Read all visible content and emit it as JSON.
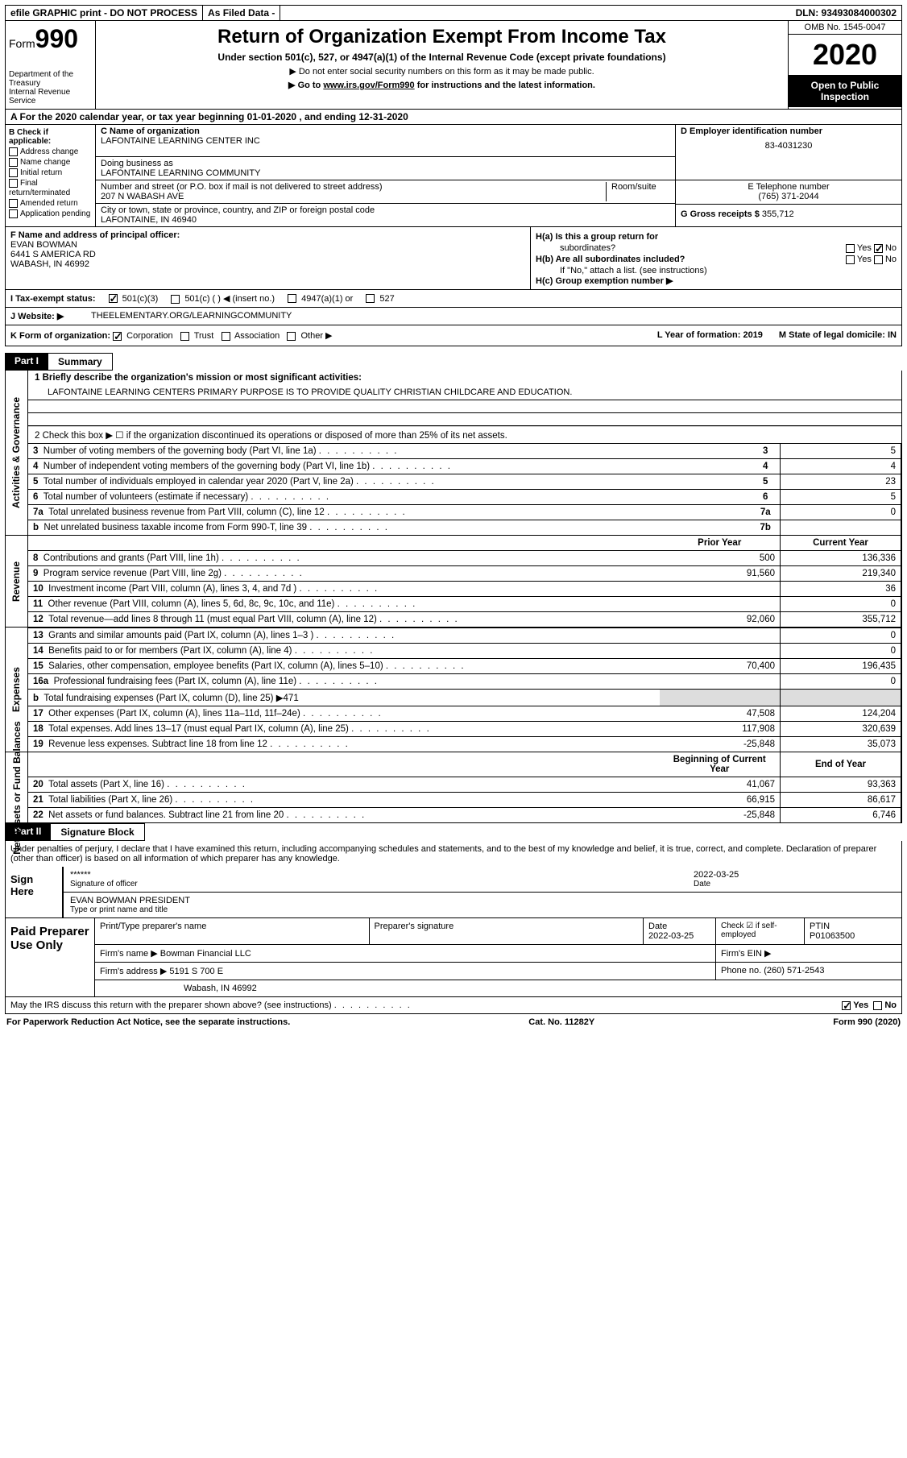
{
  "top": {
    "efile": "efile GRAPHIC print - DO NOT PROCESS",
    "asfiled": "As Filed Data -",
    "dln": "DLN: 93493084000302"
  },
  "header": {
    "form": "Form",
    "num": "990",
    "dept": "Department of the Treasury\nInternal Revenue Service",
    "title": "Return of Organization Exempt From Income Tax",
    "sub": "Under section 501(c), 527, or 4947(a)(1) of the Internal Revenue Code (except private foundations)",
    "instr1": "▶ Do not enter social security numbers on this form as it may be made public.",
    "instr2_pre": "▶ Go to ",
    "instr2_link": "www.irs.gov/Form990",
    "instr2_post": " for instructions and the latest information.",
    "omb": "OMB No. 1545-0047",
    "year": "2020",
    "open": "Open to Public Inspection"
  },
  "rowA": "A  For the 2020 calendar year, or tax year beginning 01-01-2020  , and ending 12-31-2020",
  "b": {
    "label": "B Check if applicable:",
    "opts": [
      "Address change",
      "Name change",
      "Initial return",
      "Final return/terminated",
      "Amended return",
      "Application pending"
    ]
  },
  "c": {
    "name_label": "C Name of organization",
    "name": "LAFONTAINE LEARNING CENTER INC",
    "dba_label": "Doing business as",
    "dba": "LAFONTAINE LEARNING COMMUNITY",
    "addr_label": "Number and street (or P.O. box if mail is not delivered to street address)",
    "room": "Room/suite",
    "addr": "207 N WABASH AVE",
    "city_label": "City or town, state or province, country, and ZIP or foreign postal code",
    "city": "LAFONTAINE, IN  46940"
  },
  "d": {
    "label": "D Employer identification number",
    "val": "83-4031230"
  },
  "e": {
    "label": "E Telephone number",
    "val": "(765) 371-2044"
  },
  "g": {
    "label": "G Gross receipts $",
    "val": "355,712"
  },
  "f": {
    "label": "F  Name and address of principal officer:",
    "name": "EVAN BOWMAN",
    "addr1": "6441 S AMERICA RD",
    "addr2": "WABASH, IN  46992"
  },
  "h": {
    "a": "H(a) Is this a group return for",
    "a2": "subordinates?",
    "b": "H(b) Are all subordinates included?",
    "note": "If \"No,\" attach a list. (see instructions)",
    "c": "H(c) Group exemption number ▶",
    "yes": "Yes",
    "no": "No"
  },
  "i": {
    "label": "I  Tax-exempt status:",
    "o1": "501(c)(3)",
    "o2": "501(c) (  ) ◀ (insert no.)",
    "o3": "4947(a)(1) or",
    "o4": "527"
  },
  "j": {
    "label": "J  Website: ▶",
    "val": "THEELEMENTARY.ORG/LEARNINGCOMMUNITY"
  },
  "k": {
    "label": "K Form of organization:",
    "o1": "Corporation",
    "o2": "Trust",
    "o3": "Association",
    "o4": "Other ▶",
    "l": "L Year of formation: 2019",
    "m": "M State of legal domicile: IN"
  },
  "part1": {
    "label": "Part I",
    "title": "Summary"
  },
  "summary": {
    "tabs": [
      "Activities & Governance",
      "Revenue",
      "Expenses",
      "Net Assets or Fund Balances"
    ],
    "l1": "1 Briefly describe the organization's mission or most significant activities:",
    "mission": "LAFONTAINE LEARNING CENTERS PRIMARY PURPOSE IS TO PROVIDE QUALITY CHRISTIAN CHILDCARE AND EDUCATION.",
    "l2": "2  Check this box ▶ ☐ if the organization discontinued its operations or disposed of more than 25% of its net assets.",
    "rows_ag": [
      {
        "n": "3",
        "d": "Number of voting members of the governing body (Part VI, line 1a)",
        "k": "3",
        "v": "5"
      },
      {
        "n": "4",
        "d": "Number of independent voting members of the governing body (Part VI, line 1b)",
        "k": "4",
        "v": "4"
      },
      {
        "n": "5",
        "d": "Total number of individuals employed in calendar year 2020 (Part V, line 2a)",
        "k": "5",
        "v": "23"
      },
      {
        "n": "6",
        "d": "Total number of volunteers (estimate if necessary)",
        "k": "6",
        "v": "5"
      },
      {
        "n": "7a",
        "d": "Total unrelated business revenue from Part VIII, column (C), line 12",
        "k": "7a",
        "v": "0"
      },
      {
        "n": "b",
        "d": "Net unrelated business taxable income from Form 990-T, line 39",
        "k": "7b",
        "v": ""
      }
    ],
    "hdr_prior": "Prior Year",
    "hdr_curr": "Current Year",
    "rows_rev": [
      {
        "n": "8",
        "d": "Contributions and grants (Part VIII, line 1h)",
        "p": "500",
        "c": "136,336"
      },
      {
        "n": "9",
        "d": "Program service revenue (Part VIII, line 2g)",
        "p": "91,560",
        "c": "219,340"
      },
      {
        "n": "10",
        "d": "Investment income (Part VIII, column (A), lines 3, 4, and 7d )",
        "p": "",
        "c": "36"
      },
      {
        "n": "11",
        "d": "Other revenue (Part VIII, column (A), lines 5, 6d, 8c, 9c, 10c, and 11e)",
        "p": "",
        "c": "0"
      },
      {
        "n": "12",
        "d": "Total revenue—add lines 8 through 11 (must equal Part VIII, column (A), line 12)",
        "p": "92,060",
        "c": "355,712"
      }
    ],
    "rows_exp": [
      {
        "n": "13",
        "d": "Grants and similar amounts paid (Part IX, column (A), lines 1–3 )",
        "p": "",
        "c": "0"
      },
      {
        "n": "14",
        "d": "Benefits paid to or for members (Part IX, column (A), line 4)",
        "p": "",
        "c": "0"
      },
      {
        "n": "15",
        "d": "Salaries, other compensation, employee benefits (Part IX, column (A), lines 5–10)",
        "p": "70,400",
        "c": "196,435"
      },
      {
        "n": "16a",
        "d": "Professional fundraising fees (Part IX, column (A), line 11e)",
        "p": "",
        "c": "0"
      },
      {
        "n": "b",
        "d": "Total fundraising expenses (Part IX, column (D), line 25) ▶471",
        "p": "shaded",
        "c": "shaded"
      },
      {
        "n": "17",
        "d": "Other expenses (Part IX, column (A), lines 11a–11d, 11f–24e)",
        "p": "47,508",
        "c": "124,204"
      },
      {
        "n": "18",
        "d": "Total expenses. Add lines 13–17 (must equal Part IX, column (A), line 25)",
        "p": "117,908",
        "c": "320,639"
      },
      {
        "n": "19",
        "d": "Revenue less expenses. Subtract line 18 from line 12",
        "p": "-25,848",
        "c": "35,073"
      }
    ],
    "hdr_begin": "Beginning of Current Year",
    "hdr_end": "End of Year",
    "rows_na": [
      {
        "n": "20",
        "d": "Total assets (Part X, line 16)",
        "p": "41,067",
        "c": "93,363"
      },
      {
        "n": "21",
        "d": "Total liabilities (Part X, line 26)",
        "p": "66,915",
        "c": "86,617"
      },
      {
        "n": "22",
        "d": "Net assets or fund balances. Subtract line 21 from line 20",
        "p": "-25,848",
        "c": "6,746"
      }
    ]
  },
  "part2": {
    "label": "Part II",
    "title": "Signature Block"
  },
  "sig": {
    "intro": "Under penalties of perjury, I declare that I have examined this return, including accompanying schedules and statements, and to the best of my knowledge and belief, it is true, correct, and complete. Declaration of preparer (other than officer) is based on all information of which preparer has any knowledge.",
    "here": "Sign Here",
    "stars": "******",
    "sigof": "Signature of officer",
    "date": "2022-03-25",
    "datelbl": "Date",
    "name": "EVAN BOWMAN PRESIDENT",
    "typelbl": "Type or print name and title"
  },
  "prep": {
    "title": "Paid Preparer Use Only",
    "h1": "Print/Type preparer's name",
    "h2": "Preparer's signature",
    "h3": "Date",
    "h3v": "2022-03-25",
    "h4": "Check ☑ if self-employed",
    "h5": "PTIN",
    "h5v": "P01063500",
    "firm_lbl": "Firm's name    ▶",
    "firm": "Bowman Financial LLC",
    "ein_lbl": "Firm's EIN ▶",
    "addr_lbl": "Firm's address ▶",
    "addr1": "5191 S 700 E",
    "addr2": "Wabash, IN  46992",
    "phone_lbl": "Phone no.",
    "phone": "(260) 571-2543"
  },
  "footer": {
    "discuss": "May the IRS discuss this return with the preparer shown above? (see instructions)",
    "yes": "Yes",
    "no": "No",
    "pra": "For Paperwork Reduction Act Notice, see the separate instructions.",
    "cat": "Cat. No. 11282Y",
    "form": "Form 990 (2020)"
  }
}
